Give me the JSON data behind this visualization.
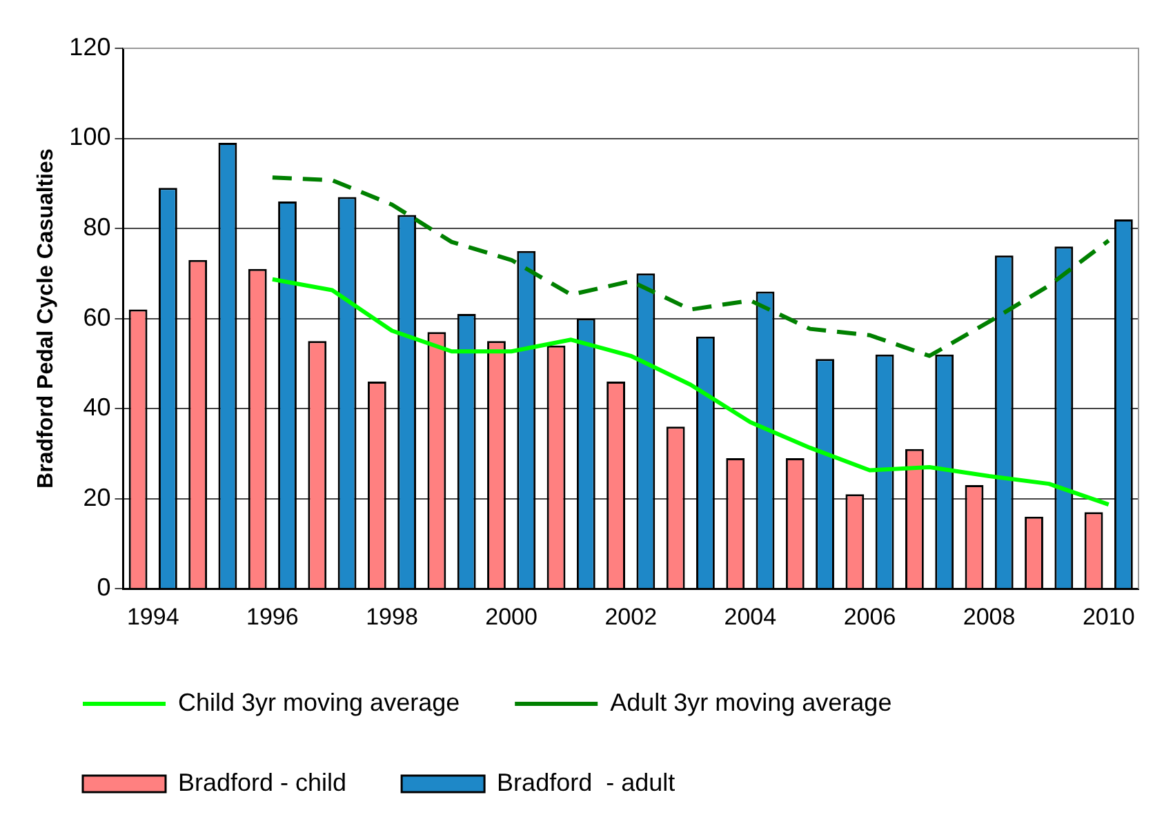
{
  "chart_data": {
    "type": "bar",
    "ylabel": "Bradford Pedal Cycle Casualties",
    "categories": [
      "1994",
      null,
      "1996",
      null,
      "1998",
      null,
      "2000",
      null,
      "2002",
      null,
      "2004",
      null,
      "2006",
      null,
      "2008",
      null,
      "2010"
    ],
    "series": [
      {
        "name": "Bradford - child",
        "color": "#ff8080",
        "values": [
          62,
          73,
          71,
          55,
          46,
          57,
          55,
          54,
          46,
          36,
          29,
          29,
          21,
          31,
          23,
          16,
          17
        ]
      },
      {
        "name": "Bradford  - adult",
        "color": "#1e88c8",
        "values": [
          89,
          99,
          86,
          87,
          83,
          61,
          75,
          60,
          70,
          56,
          66,
          51,
          52,
          52,
          74,
          76,
          82
        ]
      },
      {
        "name": "Child 3yr moving average",
        "type": "line",
        "color": "#00ff00",
        "line_style": "solid",
        "values": [
          null,
          null,
          68.7,
          66.3,
          57.3,
          52.7,
          52.7,
          55.3,
          51.7,
          45.3,
          37,
          31.3,
          26.3,
          27,
          25,
          23.3,
          18.7
        ]
      },
      {
        "name": "Adult 3yr moving average",
        "type": "line",
        "color": "#008000",
        "line_style": "dashed",
        "values": [
          null,
          null,
          91.3,
          90.7,
          85.3,
          77,
          73,
          65.3,
          68.3,
          62,
          64,
          57.7,
          56.3,
          51.7,
          59.3,
          67.3,
          77.3
        ]
      }
    ],
    "ylim": [
      0,
      120
    ],
    "yticks": [
      0,
      20,
      40,
      60,
      80,
      100,
      120
    ],
    "grid": "y",
    "legend": "bottom",
    "marker": "none"
  }
}
